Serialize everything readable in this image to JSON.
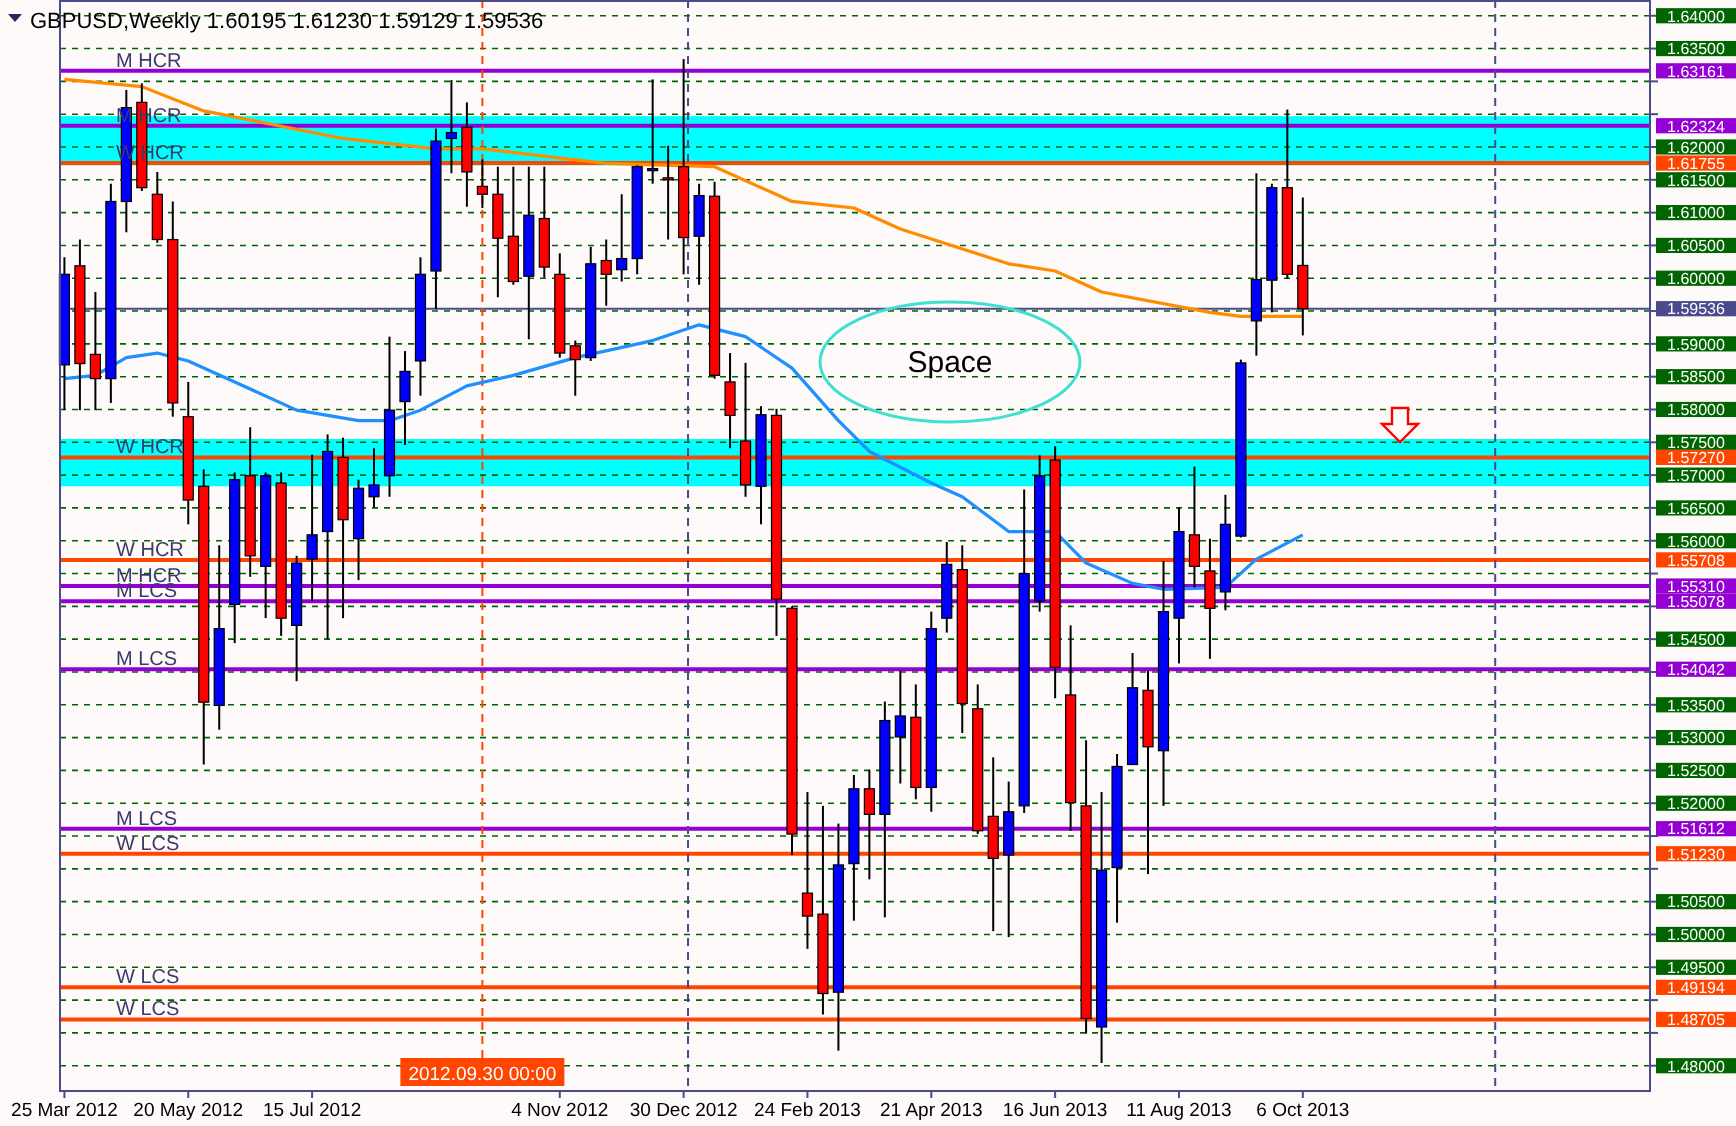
{
  "chart_data": {
    "type": "candlestick",
    "title": "GBPUSD,Weekly 1.60195 1.61230 1.59129 1.59536",
    "x": [
      "2012-03-25",
      "2012-04-01",
      "2012-04-08",
      "2012-04-15",
      "2012-04-22",
      "2012-04-29",
      "2012-05-06",
      "2012-05-13",
      "2012-05-20",
      "2012-05-27",
      "2012-06-03",
      "2012-06-10",
      "2012-06-17",
      "2012-06-24",
      "2012-07-01",
      "2012-07-08",
      "2012-07-15",
      "2012-07-22",
      "2012-07-29",
      "2012-08-05",
      "2012-08-12",
      "2012-08-19",
      "2012-08-26",
      "2012-09-02",
      "2012-09-09",
      "2012-09-16",
      "2012-09-23",
      "2012-09-30",
      "2012-10-07",
      "2012-10-14",
      "2012-10-21",
      "2012-10-28",
      "2012-11-04",
      "2012-11-11",
      "2012-11-18",
      "2012-11-25",
      "2012-12-02",
      "2012-12-09",
      "2012-12-16",
      "2012-12-23",
      "2012-12-30",
      "2013-01-06",
      "2013-01-13",
      "2013-01-20",
      "2013-01-27",
      "2013-02-03",
      "2013-02-10",
      "2013-02-17",
      "2013-02-24",
      "2013-03-03",
      "2013-03-10",
      "2013-03-17",
      "2013-03-24",
      "2013-03-31",
      "2013-04-07",
      "2013-04-14",
      "2013-04-21",
      "2013-04-28",
      "2013-05-05",
      "2013-05-12",
      "2013-05-19",
      "2013-05-26",
      "2013-06-02",
      "2013-06-09",
      "2013-06-16",
      "2013-06-23",
      "2013-06-30",
      "2013-07-07",
      "2013-07-14",
      "2013-07-21",
      "2013-07-28",
      "2013-08-04",
      "2013-08-11",
      "2013-08-18",
      "2013-08-25",
      "2013-09-01",
      "2013-09-08",
      "2013-09-15",
      "2013-09-22",
      "2013-09-29",
      "2013-10-06"
    ],
    "ohlc": [
      [
        1.5868,
        1.6032,
        1.5799,
        1.6006
      ],
      [
        1.6019,
        1.6059,
        1.5799,
        1.587
      ],
      [
        1.5884,
        1.5979,
        1.5799,
        1.5847
      ],
      [
        1.5847,
        1.6144,
        1.581,
        1.6117
      ],
      [
        1.6117,
        1.6287,
        1.607,
        1.626
      ],
      [
        1.6268,
        1.6297,
        1.6133,
        1.6138
      ],
      [
        1.6128,
        1.6162,
        1.6054,
        1.6059
      ],
      [
        1.6059,
        1.6117,
        1.5789,
        1.581
      ],
      [
        1.5789,
        1.5842,
        1.5625,
        1.5662
      ],
      [
        1.5683,
        1.5709,
        1.5259,
        1.5354
      ],
      [
        1.5349,
        1.5593,
        1.5312,
        1.5466
      ],
      [
        1.5503,
        1.5704,
        1.5444,
        1.5693
      ],
      [
        1.5699,
        1.5773,
        1.5545,
        1.5577
      ],
      [
        1.5561,
        1.5704,
        1.5482,
        1.5699
      ],
      [
        1.5688,
        1.5704,
        1.5455,
        1.5482
      ],
      [
        1.5471,
        1.5577,
        1.5386,
        1.5566
      ],
      [
        1.5572,
        1.5731,
        1.5508,
        1.5609
      ],
      [
        1.5614,
        1.5762,
        1.545,
        1.5736
      ],
      [
        1.5727,
        1.5757,
        1.5482,
        1.5632
      ],
      [
        1.5603,
        1.5693,
        1.554,
        1.568
      ],
      [
        1.5667,
        1.5741,
        1.5651,
        1.5685
      ],
      [
        1.5699,
        1.5911,
        1.5667,
        1.5799
      ],
      [
        1.5812,
        1.5889,
        1.5746,
        1.5858
      ],
      [
        1.5874,
        1.6032,
        1.5821,
        1.6006
      ],
      [
        1.6011,
        1.6228,
        1.5953,
        1.6209
      ],
      [
        1.6213,
        1.6302,
        1.616,
        1.6222
      ],
      [
        1.623,
        1.6268,
        1.6109,
        1.6162
      ],
      [
        1.614,
        1.6181,
        1.6107,
        1.6128
      ],
      [
        1.6128,
        1.617,
        1.5971,
        1.6061
      ],
      [
        1.6064,
        1.617,
        1.599,
        1.5995
      ],
      [
        1.6003,
        1.617,
        1.5907,
        1.6096
      ],
      [
        1.6091,
        1.617,
        1.6001,
        1.6017
      ],
      [
        1.6006,
        1.6038,
        1.5879,
        1.5886
      ],
      [
        1.5897,
        1.5905,
        1.5821,
        1.5876
      ],
      [
        1.5879,
        1.6048,
        1.5874,
        1.6022
      ],
      [
        1.6027,
        1.6059,
        1.5958,
        1.6006
      ],
      [
        1.6013,
        1.6128,
        1.5995,
        1.603
      ],
      [
        1.603,
        1.6172,
        1.6006,
        1.617
      ],
      [
        1.6164,
        1.6303,
        1.6144,
        1.6167
      ],
      [
        1.6153,
        1.6202,
        1.6059,
        1.615
      ],
      [
        1.617,
        1.6334,
        1.6006,
        1.6062
      ],
      [
        1.6064,
        1.6144,
        1.599,
        1.6126
      ],
      [
        1.6125,
        1.6147,
        1.5847,
        1.5852
      ],
      [
        1.5842,
        1.5886,
        1.5741,
        1.5791
      ],
      [
        1.5752,
        1.5871,
        1.5667,
        1.5685
      ],
      [
        1.5683,
        1.5805,
        1.5625,
        1.5792
      ],
      [
        1.5791,
        1.5801,
        1.5455,
        1.5511
      ],
      [
        1.5497,
        1.55,
        1.5121,
        1.5153
      ],
      [
        1.5063,
        1.5217,
        1.4978,
        1.5028
      ],
      [
        1.5031,
        1.5196,
        1.4878,
        1.491
      ],
      [
        1.4912,
        1.5169,
        1.4823,
        1.5106
      ],
      [
        1.5108,
        1.5243,
        1.5021,
        1.5222
      ],
      [
        1.5222,
        1.5251,
        1.5084,
        1.5183
      ],
      [
        1.5183,
        1.5355,
        1.5026,
        1.5326
      ],
      [
        1.5301,
        1.5402,
        1.523,
        1.5333
      ],
      [
        1.5331,
        1.5381,
        1.5206,
        1.5224
      ],
      [
        1.5224,
        1.5492,
        1.5187,
        1.5466
      ],
      [
        1.5482,
        1.5598,
        1.546,
        1.5564
      ],
      [
        1.5556,
        1.5593,
        1.5307,
        1.5352
      ],
      [
        1.5344,
        1.5381,
        1.5153,
        1.5158
      ],
      [
        1.518,
        1.527,
        1.5005,
        1.5116
      ],
      [
        1.5121,
        1.5233,
        1.4996,
        1.5187
      ],
      [
        1.5196,
        1.5678,
        1.5185,
        1.555
      ],
      [
        1.5508,
        1.573,
        1.5492,
        1.5699
      ],
      [
        1.5723,
        1.5744,
        1.536,
        1.5407
      ],
      [
        1.5365,
        1.5471,
        1.5158,
        1.5201
      ],
      [
        1.5196,
        1.5296,
        1.4849,
        1.4872
      ],
      [
        1.4859,
        1.5217,
        1.4804,
        1.5098
      ],
      [
        1.5102,
        1.5275,
        1.5018,
        1.5256
      ],
      [
        1.5259,
        1.5429,
        1.5259,
        1.5376
      ],
      [
        1.5372,
        1.5402,
        1.5092,
        1.5286
      ],
      [
        1.528,
        1.5569,
        1.5196,
        1.5492
      ],
      [
        1.5482,
        1.5651,
        1.5413,
        1.5614
      ],
      [
        1.5609,
        1.5713,
        1.5529,
        1.5561
      ],
      [
        1.5554,
        1.5603,
        1.542,
        1.5497
      ],
      [
        1.5522,
        1.567,
        1.5494,
        1.5625
      ],
      [
        1.5607,
        1.5876,
        1.5605,
        1.5871
      ],
      [
        1.5935,
        1.616,
        1.5882,
        1.5998
      ],
      [
        1.5997,
        1.6144,
        1.5948,
        1.6138
      ],
      [
        1.6138,
        1.6257,
        1.5999,
        1.6006
      ],
      [
        1.60195,
        1.6123,
        1.59129,
        1.59536
      ]
    ],
    "colors": [
      "#0000ff",
      "#ff0000",
      "#ff0000",
      "#0000ff",
      "#0000ff",
      "#ff0000",
      "#ff0000",
      "#ff0000",
      "#ff0000",
      "#ff0000",
      "#0000ff",
      "#0000ff",
      "#ff0000",
      "#0000ff",
      "#ff0000",
      "#0000ff",
      "#0000ff",
      "#0000ff",
      "#ff0000",
      "#0000ff",
      "#0000ff",
      "#0000ff",
      "#0000ff",
      "#0000ff",
      "#0000ff",
      "#0000ff",
      "#ff0000",
      "#ff0000",
      "#ff0000",
      "#ff0000",
      "#0000ff",
      "#ff0000",
      "#ff0000",
      "#ff0000",
      "#0000ff",
      "#ff0000",
      "#0000ff",
      "#0000ff",
      "#0000ff",
      "#ff0000",
      "#ff0000",
      "#0000ff",
      "#ff0000",
      "#ff0000",
      "#ff0000",
      "#0000ff",
      "#ff0000",
      "#ff0000",
      "#ff0000",
      "#ff0000",
      "#0000ff",
      "#0000ff",
      "#ff0000",
      "#0000ff",
      "#0000ff",
      "#ff0000",
      "#0000ff",
      "#0000ff",
      "#ff0000",
      "#ff0000",
      "#ff0000",
      "#0000ff",
      "#0000ff",
      "#0000ff",
      "#ff0000",
      "#ff0000",
      "#ff0000",
      "#0000ff",
      "#0000ff",
      "#0000ff",
      "#ff0000",
      "#0000ff",
      "#0000ff",
      "#ff0000",
      "#ff0000",
      "#0000ff",
      "#0000ff",
      "#0000ff",
      "#0000ff",
      "#ff0000",
      "#ff0000"
    ],
    "series": [
      {
        "type": "line",
        "color": "#ff8c00",
        "x": [
          "2012-03-25",
          "2012-04-29",
          "2012-05-27",
          "2012-07-29",
          "2012-09-09",
          "2012-09-30",
          "2012-11-25",
          "2013-01-13",
          "2013-02-17",
          "2013-03-17",
          "2013-04-07",
          "2013-05-26",
          "2013-06-16",
          "2013-07-07",
          "2013-08-25",
          "2013-09-08",
          "2013-10-06"
        ],
        "values": [
          1.6303,
          1.6292,
          1.6255,
          1.6213,
          1.6197,
          1.6197,
          1.6175,
          1.617,
          1.6117,
          1.6107,
          1.6075,
          1.6022,
          1.6011,
          1.5979,
          1.5948,
          1.5942,
          1.5942
        ]
      },
      {
        "type": "line",
        "color": "#1e90ff",
        "x": [
          "2012-03-25",
          "2012-04-08",
          "2012-04-22",
          "2012-05-06",
          "2012-05-20",
          "2012-06-10",
          "2012-07-08",
          "2012-08-05",
          "2012-08-19",
          "2012-09-02",
          "2012-09-23",
          "2012-10-14",
          "2012-11-11",
          "2012-12-16",
          "2013-01-06",
          "2013-01-27",
          "2013-02-17",
          "2013-03-10",
          "2013-03-24",
          "2013-04-21",
          "2013-05-05",
          "2013-05-26",
          "2013-06-16",
          "2013-06-30",
          "2013-07-21",
          "2013-08-04",
          "2013-09-01",
          "2013-09-15",
          "2013-10-06"
        ],
        "values": [
          1.5847,
          1.5852,
          1.5879,
          1.5886,
          1.5874,
          1.5842,
          1.5799,
          1.5783,
          1.5783,
          1.5799,
          1.5836,
          1.5852,
          1.5879,
          1.5905,
          1.5929,
          1.5911,
          1.5863,
          1.5783,
          1.5736,
          1.5688,
          1.5667,
          1.5614,
          1.5614,
          1.5566,
          1.5535,
          1.5526,
          1.5529,
          1.5572,
          1.5609
        ]
      }
    ],
    "xlim": [
      "2012-03-23",
      "2014-03-12"
    ],
    "xticks": [
      {
        "value": "2012-03-25",
        "label": "25 Mar 2012"
      },
      {
        "value": "2012-05-20",
        "label": "20 May 2012"
      },
      {
        "value": "2012-07-15",
        "label": "15 Jul 2012"
      },
      {
        "value": "2012-11-04",
        "label": "4 Nov 2012"
      },
      {
        "value": "2012-12-30",
        "label": "30 Dec 2012"
      },
      {
        "value": "2013-02-24",
        "label": "24 Feb 2013"
      },
      {
        "value": "2013-04-21",
        "label": "21 Apr 2013"
      },
      {
        "value": "2013-06-16",
        "label": "16 Jun 2013"
      },
      {
        "value": "2013-08-11",
        "label": "11 Aug 2013"
      },
      {
        "value": "2013-10-06",
        "label": "6 Oct 2013"
      }
    ],
    "ylim": [
      1.4763,
      1.6424
    ],
    "yticks": [
      {
        "value": 1.48,
        "label": "1.48000"
      },
      {
        "value": 1.485,
        "label": null
      },
      {
        "value": 1.49,
        "label": null
      },
      {
        "value": 1.495,
        "label": "1.49500"
      },
      {
        "value": 1.5,
        "label": "1.50000"
      },
      {
        "value": 1.505,
        "label": "1.50500"
      },
      {
        "value": 1.51,
        "label": null
      },
      {
        "value": 1.515,
        "label": null
      },
      {
        "value": 1.52,
        "label": "1.52000"
      },
      {
        "value": 1.525,
        "label": "1.52500"
      },
      {
        "value": 1.53,
        "label": "1.53000"
      },
      {
        "value": 1.535,
        "label": "1.53500"
      },
      {
        "value": 1.54,
        "label": null
      },
      {
        "value": 1.545,
        "label": "1.54500"
      },
      {
        "value": 1.55,
        "label": null
      },
      {
        "value": 1.555,
        "label": null
      },
      {
        "value": 1.56,
        "label": "1.56000"
      },
      {
        "value": 1.565,
        "label": "1.56500"
      },
      {
        "value": 1.57,
        "label": "1.57000"
      },
      {
        "value": 1.575,
        "label": "1.57500"
      },
      {
        "value": 1.58,
        "label": "1.58000"
      },
      {
        "value": 1.585,
        "label": "1.58500"
      },
      {
        "value": 1.59,
        "label": "1.59000"
      },
      {
        "value": 1.595,
        "label": null
      },
      {
        "value": 1.6,
        "label": "1.60000"
      },
      {
        "value": 1.605,
        "label": "1.60500"
      },
      {
        "value": 1.61,
        "label": "1.61000"
      },
      {
        "value": 1.615,
        "label": "1.61500"
      },
      {
        "value": 1.62,
        "label": "1.62000"
      },
      {
        "value": 1.625,
        "label": null
      },
      {
        "value": 1.63,
        "label": null
      },
      {
        "value": 1.635,
        "label": "1.63500"
      },
      {
        "value": 1.64,
        "label": "1.64000"
      }
    ],
    "grid": "y",
    "bands": [
      {
        "axis": "y",
        "from": 1.6172,
        "to": 1.6247,
        "color": "#00ffff"
      },
      {
        "axis": "y",
        "from": 1.5683,
        "to": 1.5755,
        "color": "#00ffff"
      }
    ],
    "ref_lines": [
      {
        "axis": "y",
        "value": 1.63161,
        "label": "M HCR",
        "color": "#9400d3"
      },
      {
        "axis": "y",
        "value": 1.62324,
        "label": "M HCR",
        "color": "#9400d3"
      },
      {
        "axis": "y",
        "value": 1.61755,
        "label": "W HCR",
        "color": "#ff4500"
      },
      {
        "axis": "y",
        "value": 1.59536,
        "label": null,
        "color": "#4a4a8c"
      },
      {
        "axis": "y",
        "value": 1.5727,
        "label": "W HCR",
        "color": "#ff4500"
      },
      {
        "axis": "y",
        "value": 1.55708,
        "label": "W HCR",
        "color": "#ff4500"
      },
      {
        "axis": "y",
        "value": 1.5531,
        "label": "M HCR",
        "color": "#9400d3"
      },
      {
        "axis": "y",
        "value": 1.55078,
        "label": "M LCS",
        "color": "#9400d3"
      },
      {
        "axis": "y",
        "value": 1.54042,
        "label": "M LCS",
        "color": "#9400d3"
      },
      {
        "axis": "y",
        "value": 1.51612,
        "label": "M LCS",
        "color": "#9400d3"
      },
      {
        "axis": "y",
        "value": 1.5123,
        "label": "W LCS",
        "color": "#ff4500"
      },
      {
        "axis": "y",
        "value": 1.49194,
        "label": "W LCS",
        "color": "#ff4500"
      },
      {
        "axis": "y",
        "value": 1.48705,
        "label": "W LCS",
        "color": "#ff4500"
      },
      {
        "axis": "x",
        "value": "2012-09-30",
        "label": "2012.09.30 00:00",
        "color": "#ff4500",
        "line_style": "dashed"
      },
      {
        "axis": "x",
        "value": "2013-01-01",
        "label": null,
        "color": "#4a4a8c",
        "line_style": "dashed"
      },
      {
        "axis": "x",
        "value": "2014-01-01",
        "label": null,
        "color": "#4a4a8c",
        "line_style": "dashed"
      }
    ],
    "annotations": [
      "Space",
      "1.63161",
      "1.62324",
      "1.61755",
      "1.59536",
      "1.57270",
      "1.55708",
      "1.55310",
      "1.55078",
      "1.54042",
      "1.51612",
      "1.51230",
      "1.49194",
      "1.48705"
    ]
  }
}
